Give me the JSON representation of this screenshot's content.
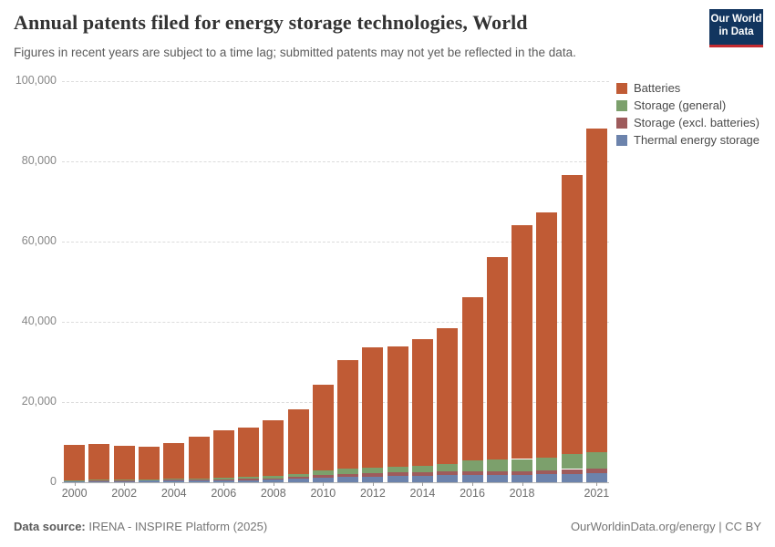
{
  "header": {
    "title": "Annual patents filed for energy storage technologies, World",
    "subtitle": "Figures in recent years are subject to a time lag; submitted patents may not yet be reflected in the data.",
    "logo_line1": "Our World",
    "logo_line2": "in Data"
  },
  "colors": {
    "batteries": "#C05B35",
    "storage_general": "#7CA06C",
    "storage_excl_batteries": "#9E5B5C",
    "thermal_energy_storage": "#6C83AC",
    "logo_bg": "#12355F",
    "logo_accent": "#C42A30",
    "gridline": "#dcdcdc",
    "axis_text": "#868686"
  },
  "chart_data": {
    "type": "bar",
    "stacked": true,
    "title": "Annual patents filed for energy storage technologies, World",
    "xlabel": "",
    "ylabel": "",
    "ylim": [
      0,
      100000
    ],
    "yticks": [
      0,
      20000,
      40000,
      60000,
      80000,
      100000
    ],
    "grid": "dashed-horizontal",
    "legend_position": "top-right",
    "categories": [
      2000,
      2001,
      2002,
      2003,
      2004,
      2005,
      2006,
      2007,
      2008,
      2009,
      2010,
      2011,
      2012,
      2013,
      2014,
      2015,
      2016,
      2017,
      2018,
      2019,
      2020,
      2021
    ],
    "xtick_labels": [
      "2000",
      "2002",
      "2004",
      "2006",
      "2008",
      "2010",
      "2012",
      "2014",
      "2016",
      "2018",
      "2021"
    ],
    "series": [
      {
        "name": "Batteries",
        "color": "#C05B35",
        "values": [
          8850,
          8910,
          8320,
          8120,
          8920,
          10300,
          11700,
          12350,
          13900,
          15950,
          21400,
          27100,
          30000,
          29900,
          31400,
          33800,
          40700,
          50600,
          58400,
          61100,
          69600,
          80600
        ]
      },
      {
        "name": "Storage (general)",
        "color": "#7CA06C",
        "values": [
          100,
          120,
          150,
          200,
          250,
          300,
          400,
          500,
          600,
          800,
          1050,
          1250,
          1400,
          1500,
          1650,
          1850,
          2700,
          2900,
          3000,
          3150,
          3800,
          4100
        ]
      },
      {
        "name": "Storage (excl. batteries)",
        "color": "#9E5B5C",
        "values": [
          150,
          150,
          180,
          200,
          230,
          250,
          280,
          300,
          350,
          450,
          700,
          750,
          800,
          850,
          850,
          850,
          900,
          950,
          1000,
          1100,
          1200,
          1250
        ]
      },
      {
        "name": "Thermal energy storage",
        "color": "#6C83AC",
        "values": [
          300,
          320,
          350,
          380,
          400,
          450,
          500,
          550,
          650,
          900,
          1150,
          1300,
          1400,
          1550,
          1700,
          1800,
          1800,
          1750,
          1800,
          1950,
          2100,
          2250
        ]
      }
    ],
    "stack_order_bottom_to_top": [
      "Thermal energy storage",
      "Storage (excl. batteries)",
      "Storage (general)",
      "Batteries"
    ]
  },
  "footer": {
    "source_label": "Data source:",
    "source_text": " IRENA - INSPIRE Platform (2025)",
    "link_text": "OurWorldinData.org/energy | CC BY"
  }
}
